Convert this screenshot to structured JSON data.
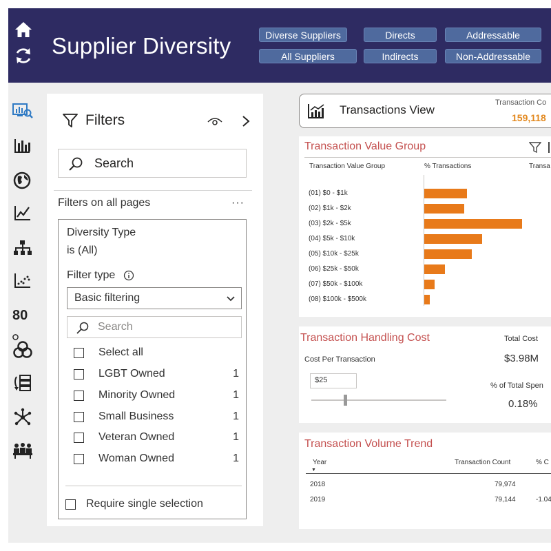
{
  "header": {
    "title": "Supplier Diversity",
    "buttons": [
      "Diverse Suppliers",
      "Directs",
      "Addressable",
      "All Suppliers",
      "Indirects",
      "Non-Addressable"
    ]
  },
  "nav": {
    "icons": [
      "report-view-icon",
      "bar-chart-icon",
      "globe-icon",
      "line-chart-icon",
      "hierarchy-icon",
      "scatter-icon",
      "eighty-twenty-icon",
      "venn-icon",
      "list-icon",
      "network-icon",
      "people-icon"
    ],
    "eighty_label": "80"
  },
  "filters": {
    "title": "Filters",
    "search_label": "Search",
    "section_label": "Filters on all pages",
    "more": "···",
    "card": {
      "field": "Diversity Type",
      "condition": "is (All)",
      "filter_type_label": "Filter type",
      "filter_type_value": "Basic filtering",
      "search_placeholder": "Search",
      "select_all": "Select all",
      "options": [
        {
          "label": "LGBT Owned",
          "count": "1"
        },
        {
          "label": "Minority Owned",
          "count": "1"
        },
        {
          "label": "Small Business",
          "count": "1"
        },
        {
          "label": "Veteran Owned",
          "count": "1"
        },
        {
          "label": "Woman Owned",
          "count": "1"
        }
      ],
      "require_single": "Require single selection"
    }
  },
  "transactions_view": {
    "title": "Transactions View",
    "count_label": "Transaction Co",
    "count_value": "159,118"
  },
  "value_group": {
    "title": "Transaction Value Group",
    "col1": "Transaction Value Group",
    "col2": "% Transactions",
    "col3": "Transa",
    "chart_data": {
      "type": "bar",
      "categories": [
        "(01) $0 - $1k",
        "(02) $1k - $2k",
        "(03) $2k - $5k",
        "(04) $5k - $10k",
        "(05) $10k - $25k",
        "(06) $25k - $50k",
        "(07) $50k - $100k",
        "(08) $100k - $500k"
      ],
      "values": [
        14.5,
        13.5,
        33,
        19.5,
        16,
        7,
        3.5,
        1.8
      ]
    }
  },
  "handling_cost": {
    "title": "Transaction Handling Cost",
    "cpt_label": "Cost Per Transaction",
    "cpt_value": "$25",
    "slider_level": 0.25,
    "total_cost_label": "Total Cost",
    "total_cost_value": "$3.98M",
    "pct_label": "% of Total Spen",
    "pct_value": "0.18%"
  },
  "volume_trend": {
    "title": "Transaction Volume Trend",
    "headers": [
      "Year",
      "Transaction Count",
      "% C"
    ],
    "rows": [
      {
        "year": "2018",
        "count": "79,974",
        "pct": ""
      },
      {
        "year": "2019",
        "count": "79,144",
        "pct": "-1.04"
      }
    ]
  },
  "colors": {
    "header_bg": "#2e2b62",
    "button_bg": "#4f6a9e",
    "bar": "#e87a1a",
    "panel_title": "#c4504f",
    "count_accent": "#e3891f"
  }
}
